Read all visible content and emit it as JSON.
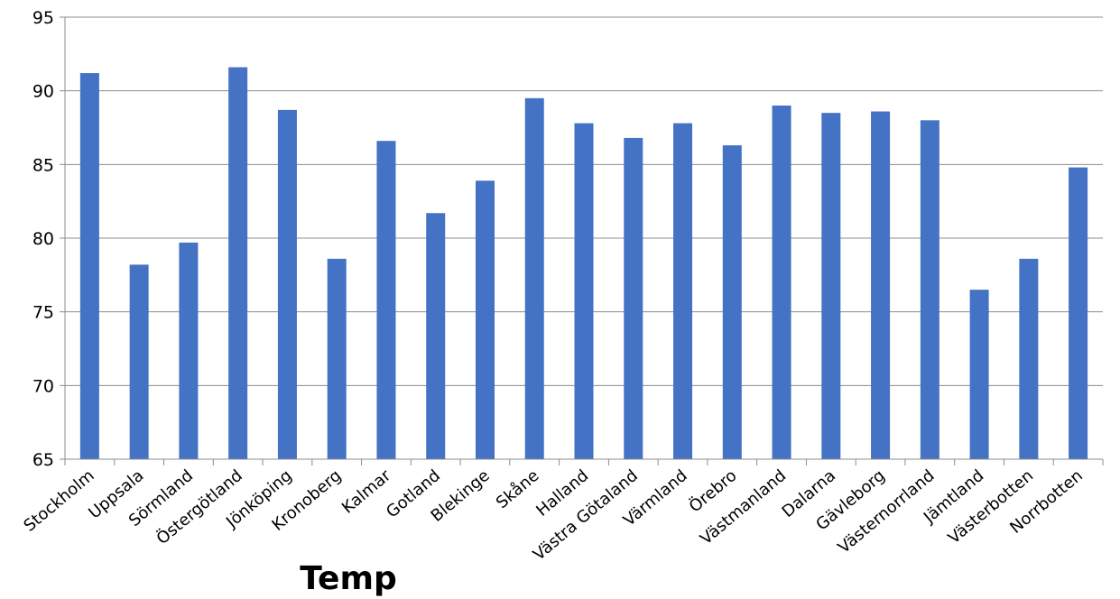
{
  "chart_data": {
    "type": "bar",
    "xlabel": "Temp",
    "ylabel": "",
    "ylim": [
      65,
      95
    ],
    "yticks": [
      65,
      70,
      75,
      80,
      85,
      90,
      95
    ],
    "grid": true,
    "legend": "none",
    "bar_color": "#4472C4",
    "categories": [
      "Stockholm",
      "Uppsala",
      "Sörmland",
      "Östergötland",
      "Jönköping",
      "Kronoberg",
      "Kalmar",
      "Gotland",
      "Blekinge",
      "Skåne",
      "Halland",
      "Västra Götaland",
      "Värmland",
      "Örebro",
      "Västmanland",
      "Dalarna",
      "Gävleborg",
      "Västernorrland",
      "Jämtland",
      "Västerbotten",
      "Norrbotten"
    ],
    "values": [
      91.2,
      78.2,
      79.7,
      91.6,
      88.7,
      78.6,
      86.6,
      81.7,
      83.9,
      89.5,
      87.8,
      86.8,
      87.8,
      86.3,
      89.0,
      88.5,
      88.6,
      88.0,
      76.5,
      78.6,
      84.8
    ]
  }
}
